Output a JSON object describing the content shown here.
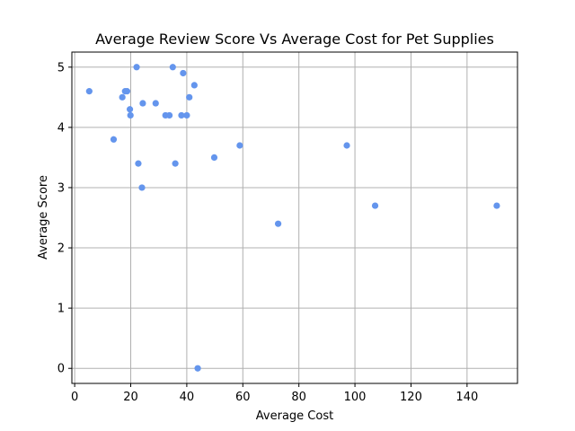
{
  "chart_data": {
    "type": "scatter",
    "title": "Average Review Score Vs Average Cost for Pet Supplies",
    "xlabel": "Average Cost",
    "ylabel": "Average Score",
    "xlim": [
      -1,
      158
    ],
    "ylim": [
      -0.25,
      5.25
    ],
    "xticks": [
      0,
      20,
      40,
      60,
      80,
      100,
      120,
      140
    ],
    "yticks": [
      0,
      1,
      2,
      3,
      4,
      5
    ],
    "grid": true,
    "marker_color": "#6495ed",
    "points": [
      {
        "x": 5.2,
        "y": 4.6
      },
      {
        "x": 13.9,
        "y": 3.8
      },
      {
        "x": 17.0,
        "y": 4.5
      },
      {
        "x": 18.0,
        "y": 4.6
      },
      {
        "x": 18.7,
        "y": 4.6
      },
      {
        "x": 19.7,
        "y": 4.3
      },
      {
        "x": 19.9,
        "y": 4.2
      },
      {
        "x": 22.1,
        "y": 5.0
      },
      {
        "x": 22.7,
        "y": 3.4
      },
      {
        "x": 24.0,
        "y": 3.0
      },
      {
        "x": 24.3,
        "y": 4.4
      },
      {
        "x": 28.9,
        "y": 4.4
      },
      {
        "x": 32.4,
        "y": 4.2
      },
      {
        "x": 33.8,
        "y": 4.2
      },
      {
        "x": 35.0,
        "y": 5.0
      },
      {
        "x": 35.9,
        "y": 3.4
      },
      {
        "x": 38.1,
        "y": 4.2
      },
      {
        "x": 38.7,
        "y": 4.9
      },
      {
        "x": 40.0,
        "y": 4.2
      },
      {
        "x": 40.9,
        "y": 4.5
      },
      {
        "x": 42.7,
        "y": 4.7
      },
      {
        "x": 43.9,
        "y": 0.0
      },
      {
        "x": 49.8,
        "y": 3.5
      },
      {
        "x": 58.9,
        "y": 3.7
      },
      {
        "x": 72.6,
        "y": 2.4
      },
      {
        "x": 97.1,
        "y": 3.7
      },
      {
        "x": 107.2,
        "y": 2.7
      },
      {
        "x": 150.6,
        "y": 2.7
      }
    ]
  }
}
